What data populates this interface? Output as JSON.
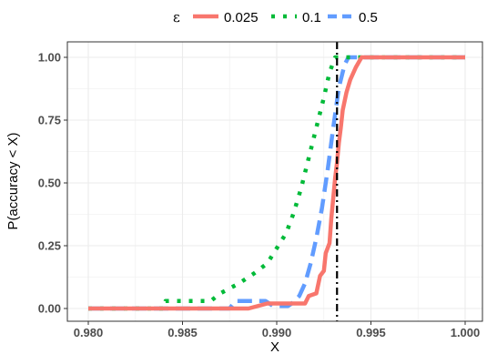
{
  "chart_data": {
    "type": "line",
    "title": "",
    "xlabel": "X",
    "ylabel": "P(accuracy < X)",
    "xlim": [
      0.98,
      1.0
    ],
    "ylim": [
      0,
      1
    ],
    "x_ticks": [
      "0.980",
      "0.985",
      "0.990",
      "0.995",
      "1.000"
    ],
    "y_ticks": [
      "0.00",
      "0.25",
      "0.50",
      "0.75",
      "1.00"
    ],
    "legend_title": "ε",
    "legend_position": "top",
    "grid": true,
    "reference_line": {
      "x": 0.9932,
      "style": "dashdot",
      "color": "#000000"
    },
    "series": [
      {
        "name": "0.025",
        "color": "#F8766D",
        "style": "solid",
        "points": [
          [
            0.98,
            0.0
          ],
          [
            0.9885,
            0.0
          ],
          [
            0.9895,
            0.02
          ],
          [
            0.9915,
            0.02
          ],
          [
            0.9917,
            0.05
          ],
          [
            0.9921,
            0.06
          ],
          [
            0.9923,
            0.13
          ],
          [
            0.9925,
            0.15
          ],
          [
            0.9926,
            0.22
          ],
          [
            0.9928,
            0.26
          ],
          [
            0.9929,
            0.36
          ],
          [
            0.993,
            0.44
          ],
          [
            0.9931,
            0.52
          ],
          [
            0.9932,
            0.58
          ],
          [
            0.9933,
            0.66
          ],
          [
            0.9934,
            0.72
          ],
          [
            0.9935,
            0.79
          ],
          [
            0.9937,
            0.86
          ],
          [
            0.9939,
            0.91
          ],
          [
            0.9942,
            0.96
          ],
          [
            0.9945,
            1.0
          ],
          [
            1.0,
            1.0
          ]
        ]
      },
      {
        "name": "0.1",
        "color": "#00BA38",
        "style": "dotted",
        "points": [
          [
            0.98,
            0.0
          ],
          [
            0.984,
            0.0
          ],
          [
            0.9841,
            0.03
          ],
          [
            0.9865,
            0.03
          ],
          [
            0.987,
            0.06
          ],
          [
            0.988,
            0.1
          ],
          [
            0.9888,
            0.14
          ],
          [
            0.9895,
            0.18
          ],
          [
            0.99,
            0.24
          ],
          [
            0.9905,
            0.3
          ],
          [
            0.9909,
            0.38
          ],
          [
            0.9913,
            0.48
          ],
          [
            0.9917,
            0.6
          ],
          [
            0.9921,
            0.72
          ],
          [
            0.9925,
            0.84
          ],
          [
            0.9928,
            0.94
          ],
          [
            0.9931,
            1.0
          ],
          [
            1.0,
            1.0
          ]
        ]
      },
      {
        "name": "0.5",
        "color": "#619CFF",
        "style": "dashed",
        "points": [
          [
            0.98,
            0.0
          ],
          [
            0.9875,
            0.0
          ],
          [
            0.9878,
            0.03
          ],
          [
            0.9894,
            0.03
          ],
          [
            0.9898,
            0.01
          ],
          [
            0.9906,
            0.01
          ],
          [
            0.9908,
            0.02
          ],
          [
            0.9912,
            0.05
          ],
          [
            0.9915,
            0.1
          ],
          [
            0.9918,
            0.18
          ],
          [
            0.9921,
            0.28
          ],
          [
            0.9924,
            0.4
          ],
          [
            0.9927,
            0.55
          ],
          [
            0.993,
            0.72
          ],
          [
            0.9933,
            0.88
          ],
          [
            0.9936,
            0.97
          ],
          [
            0.9938,
            1.0
          ],
          [
            1.0,
            1.0
          ]
        ]
      }
    ]
  }
}
